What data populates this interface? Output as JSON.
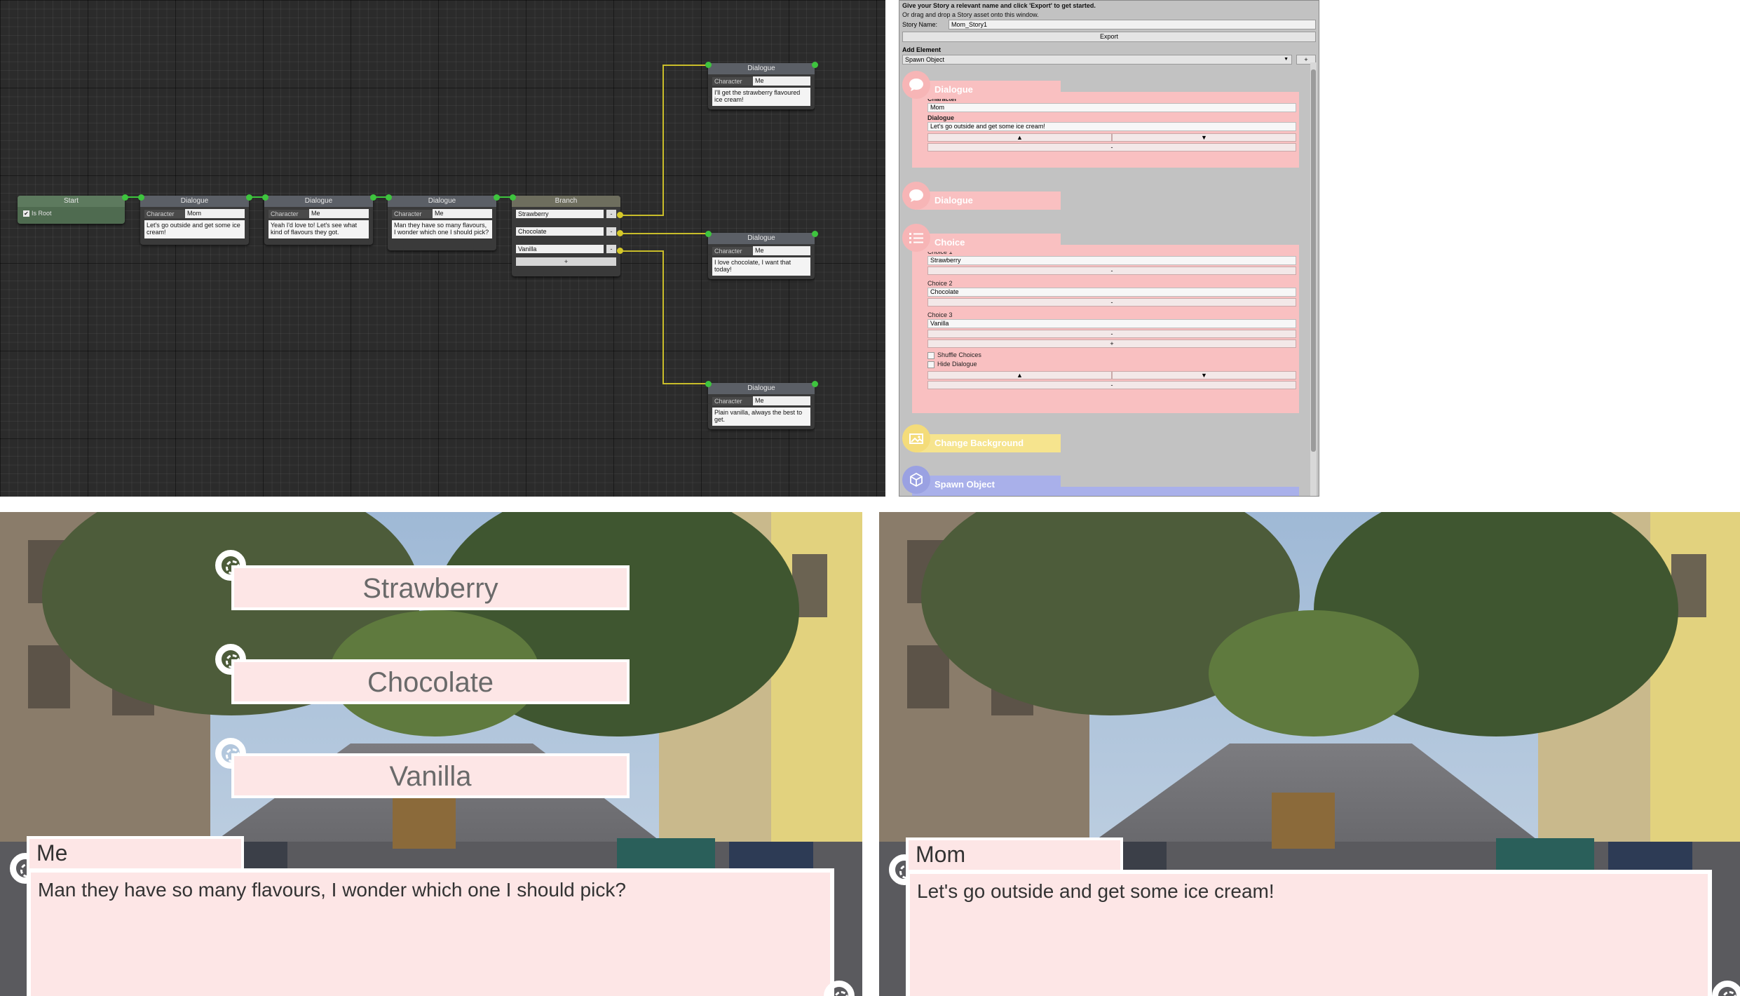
{
  "graph": {
    "start": {
      "title": "Start",
      "is_root_label": "Is Root"
    },
    "dialogue_nodes": [
      {
        "title": "Dialogue",
        "character_label": "Character",
        "character": "Mom",
        "text": "Let's go outside and get some ice cream!"
      },
      {
        "title": "Dialogue",
        "character_label": "Character",
        "character": "Me",
        "text": "Yeah I'd love to! Let's see what kind of flavours they got."
      },
      {
        "title": "Dialogue",
        "character_label": "Character",
        "character": "Me",
        "text": "Man they have so many flavours, I wonder which one I should pick?"
      }
    ],
    "branch": {
      "title": "Branch",
      "options": [
        "Strawberry",
        "Chocolate",
        "Vanilla"
      ],
      "remove_label": "-",
      "add_label": "+"
    },
    "outcome_nodes": [
      {
        "title": "Dialogue",
        "character_label": "Character",
        "character": "Me",
        "text": "I'll get the strawberry flavoured ice cream!"
      },
      {
        "title": "Dialogue",
        "character_label": "Character",
        "character": "Me",
        "text": "I love chocolate, I want that today!"
      },
      {
        "title": "Dialogue",
        "character_label": "Character",
        "character": "Me",
        "text": "Plain vanilla, always the best to get."
      }
    ]
  },
  "inspector": {
    "hint1": "Give your Story a relevant name and click 'Export' to get started.",
    "hint2": "Or drag and drop a Story asset onto this window.",
    "story_name_label": "Story Name:",
    "story_name": "Mom_Story1",
    "export_label": "Export",
    "add_element_label": "Add Element",
    "add_element_selected": "Spawn Object",
    "add_button": "+",
    "el1": {
      "title": "Dialogue",
      "character_label": "Character",
      "character": "Mom",
      "dialogue_label": "Dialogue",
      "dialogue": "Let's go outside and get some ice cream!",
      "up": "▲",
      "down": "▼",
      "remove": "-"
    },
    "el2": {
      "title": "Dialogue"
    },
    "el3": {
      "title": "Choice",
      "choices": [
        {
          "label": "Choice 1",
          "value": "Strawberry"
        },
        {
          "label": "Choice 2",
          "value": "Chocolate"
        },
        {
          "label": "Choice 3",
          "value": "Vanilla"
        }
      ],
      "remove": "-",
      "add": "+",
      "shuffle_label": "Shuffle Choices",
      "hide_label": "Hide Dialogue",
      "up": "▲",
      "down": "▼"
    },
    "el4": {
      "title": "Change Background"
    },
    "el5": {
      "title": "Spawn Object"
    }
  },
  "game_left": {
    "choices": [
      "Strawberry",
      "Chocolate",
      "Vanilla"
    ],
    "speaker": "Me",
    "dialogue": "Man they have so many flavours, I wonder which one I should pick?"
  },
  "game_right": {
    "speaker": "Mom",
    "dialogue": "Let's go outside and get some ice cream!"
  },
  "colors": {
    "port_green": "#3ec43e",
    "port_yellow": "#d6c92a",
    "dialogue_pink": "#f9c0c1",
    "background_yellow": "#f6e48e",
    "spawn_blue": "#a9b0ea",
    "game_box": "#fde6e6"
  }
}
